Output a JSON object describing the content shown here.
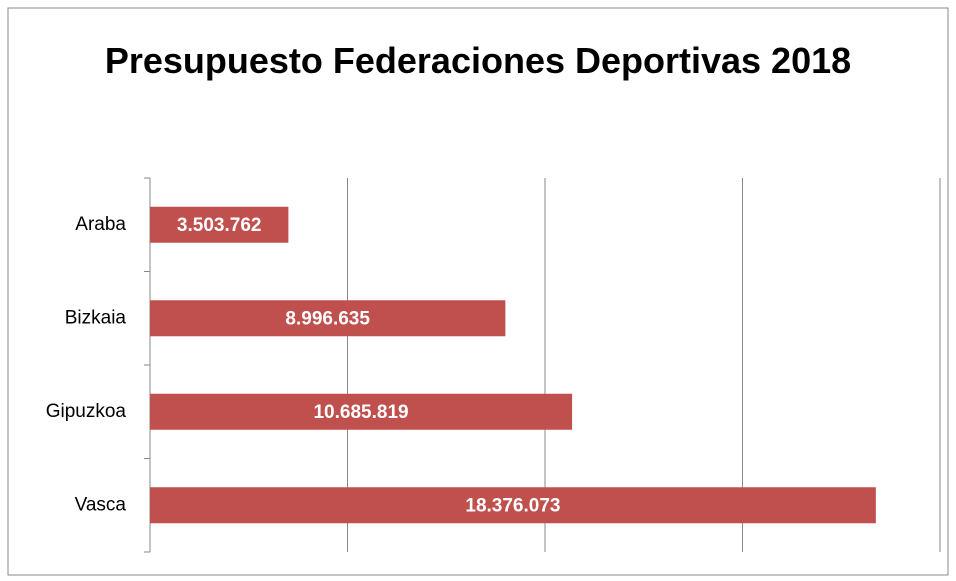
{
  "chart_data": {
    "type": "hbar",
    "title": "Presupuesto Federaciones Deportivas 2018",
    "categories": [
      "Araba",
      "Bizkaia",
      "Gipuzkoa",
      "Vasca"
    ],
    "values": [
      3503762,
      8996635,
      10685819,
      18376073
    ],
    "value_labels": [
      "3.503.762",
      "8.996.635",
      "10.685.819",
      "18.376.073"
    ],
    "color": "#c0504d",
    "xlim": [
      0,
      20000000
    ],
    "xticks": [
      0,
      5000000,
      10000000,
      15000000,
      20000000
    ],
    "grid": true
  }
}
